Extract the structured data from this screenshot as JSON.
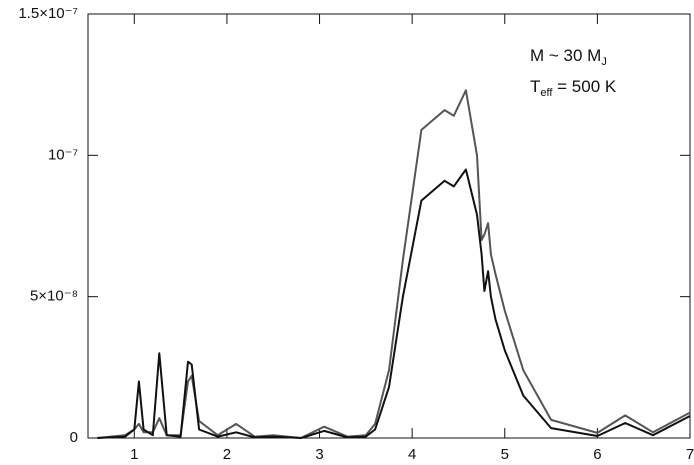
{
  "chart_data": {
    "type": "line",
    "annotations": [
      {
        "text": "M ~ 30 M",
        "sub": "J"
      },
      {
        "text": "T",
        "sub": "eff",
        "rest": " = 500 K"
      }
    ],
    "x": [
      0.6,
      0.9,
      1.0,
      1.05,
      1.1,
      1.2,
      1.27,
      1.35,
      1.5,
      1.58,
      1.62,
      1.7,
      1.9,
      2.1,
      2.3,
      2.5,
      2.8,
      3.05,
      3.3,
      3.5,
      3.6,
      3.75,
      3.9,
      4.1,
      4.35,
      4.45,
      4.58,
      4.7,
      4.75,
      4.78,
      4.82,
      4.85,
      4.9,
      5.0,
      5.2,
      5.5,
      6.0,
      6.3,
      6.6,
      7.0
    ],
    "series": [
      {
        "color": "#555555",
        "values": [
          0,
          1e-09,
          3e-09,
          5e-09,
          2e-09,
          2e-09,
          7e-09,
          1e-09,
          1e-09,
          2e-08,
          2.2e-08,
          6e-09,
          1e-09,
          5e-09,
          5e-10,
          1e-09,
          0,
          4e-09,
          5e-10,
          1e-09,
          5e-09,
          2.4e-08,
          6.3e-08,
          1.09e-07,
          1.16e-07,
          1.14e-07,
          1.23e-07,
          1e-07,
          7e-08,
          7.2e-08,
          7.6e-08,
          6.5e-08,
          5.8e-08,
          4.5e-08,
          2.4e-08,
          6.4e-09,
          1.8e-09,
          8e-09,
          2e-09,
          9e-09
        ]
      },
      {
        "color": "#111111",
        "values": [
          0,
          5e-10,
          3e-09,
          2e-08,
          3e-09,
          1e-09,
          3e-08,
          1e-09,
          5e-10,
          2.7e-08,
          2.6e-08,
          3e-09,
          5e-10,
          2e-09,
          2e-10,
          5e-10,
          0,
          2.5e-09,
          2e-10,
          5e-10,
          3e-09,
          1.8e-08,
          5e-08,
          8.4e-08,
          9.1e-08,
          8.9e-08,
          9.5e-08,
          7.9e-08,
          6.5e-08,
          5.2e-08,
          5.9e-08,
          5e-08,
          4.2e-08,
          3.1e-08,
          1.5e-08,
          3.5e-09,
          7e-10,
          5.3e-09,
          1e-09,
          7.8e-09
        ]
      }
    ],
    "xlim": [
      0.5,
      7
    ],
    "xticks": [
      1,
      2,
      3,
      4,
      5,
      6,
      7
    ],
    "ylim": [
      0,
      1.5e-07
    ],
    "yticks": [
      0,
      {
        "value": 5e-08,
        "label": "5×10⁻⁸"
      },
      {
        "value": 1e-07,
        "label": "10⁻⁷"
      },
      {
        "value": 1.5e-07,
        "label": "1.5×10⁻⁷"
      }
    ]
  }
}
